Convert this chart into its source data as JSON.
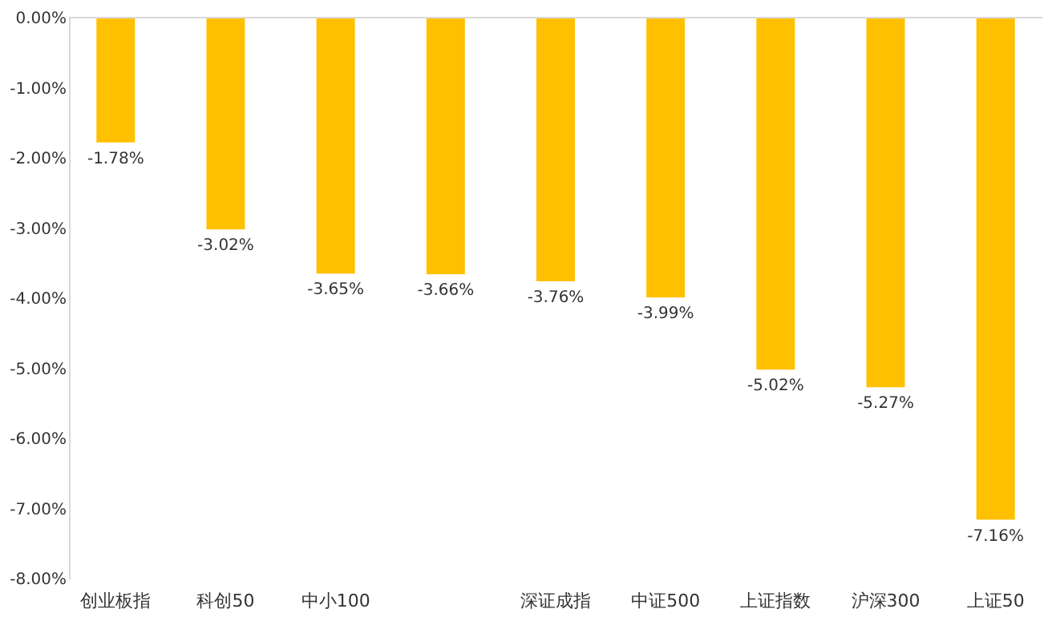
{
  "chart_data": {
    "type": "bar",
    "categories": [
      "创业板指",
      "科创50",
      "中小100",
      null,
      "深证成指",
      "中证500",
      "上证指数",
      "沪深300",
      "上证50"
    ],
    "values": [
      -1.78,
      -3.02,
      -3.65,
      -3.66,
      -3.76,
      -3.99,
      -5.02,
      -5.27,
      -7.16
    ],
    "value_labels": [
      "-1.78%",
      "-3.02%",
      "-3.65%",
      "-3.66%",
      "-3.76%",
      "-3.99%",
      "-5.02%",
      "-5.27%",
      "-7.16%"
    ],
    "color": "#ffc000",
    "ylim": [
      -8,
      0
    ],
    "yticks": [
      {
        "value": 0,
        "label": "0.00%"
      },
      {
        "value": -1,
        "label": "-1.00%"
      },
      {
        "value": -2,
        "label": "-2.00%"
      },
      {
        "value": -3,
        "label": "-3.00%"
      },
      {
        "value": -4,
        "label": "-4.00%"
      },
      {
        "value": -5,
        "label": "-5.00%"
      },
      {
        "value": -6,
        "label": "-6.00%"
      },
      {
        "value": -7,
        "label": "-7.00%"
      },
      {
        "value": -8,
        "label": "-8.00%"
      }
    ],
    "grid": false
  }
}
